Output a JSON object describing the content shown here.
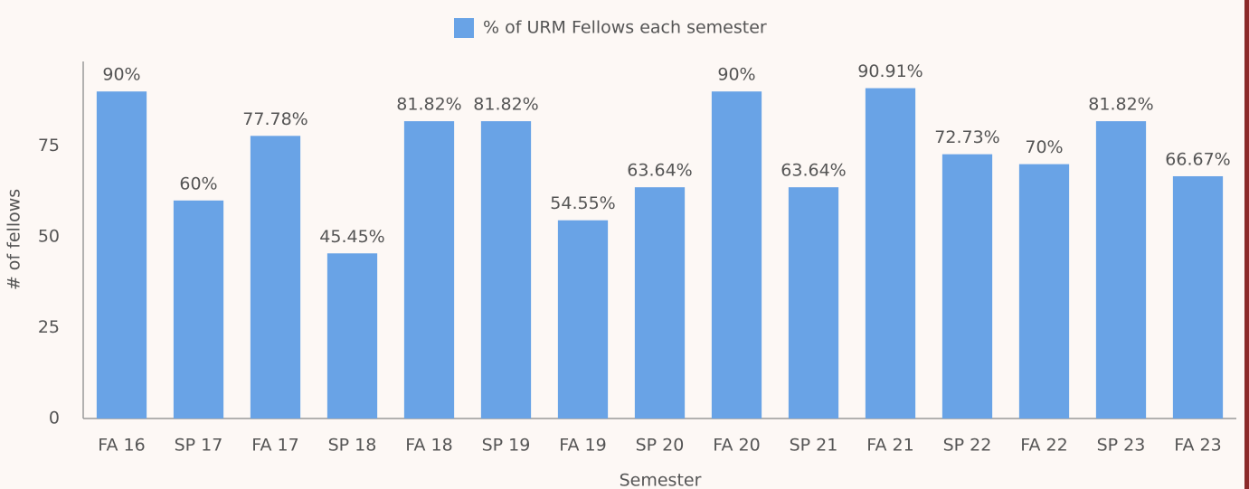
{
  "chart_data": {
    "type": "bar",
    "legend": "% of URM Fellows each semester",
    "xlabel": "Semester",
    "ylabel": "# of fellows",
    "categories": [
      "FA 16",
      "SP 17",
      "FA 17",
      "SP 18",
      "FA 18",
      "SP 19",
      "FA 19",
      "SP 20",
      "FA 20",
      "SP 21",
      "FA 21",
      "SP 22",
      "FA 22",
      "SP 23",
      "FA 23"
    ],
    "values": [
      90,
      60,
      77.78,
      45.45,
      81.82,
      81.82,
      54.55,
      63.64,
      90,
      63.64,
      90.91,
      72.73,
      70,
      81.82,
      66.67
    ],
    "value_labels": [
      "90%",
      "60%",
      "77.78%",
      "45.45%",
      "81.82%",
      "81.82%",
      "54.55%",
      "63.64%",
      "90%",
      "63.64%",
      "90.91%",
      "72.73%",
      "70%",
      "81.82%",
      "66.67%"
    ],
    "color": "#69a3e6",
    "ylim": [
      0,
      100
    ],
    "yticks": [
      0,
      25,
      50,
      75
    ],
    "grid": false
  }
}
